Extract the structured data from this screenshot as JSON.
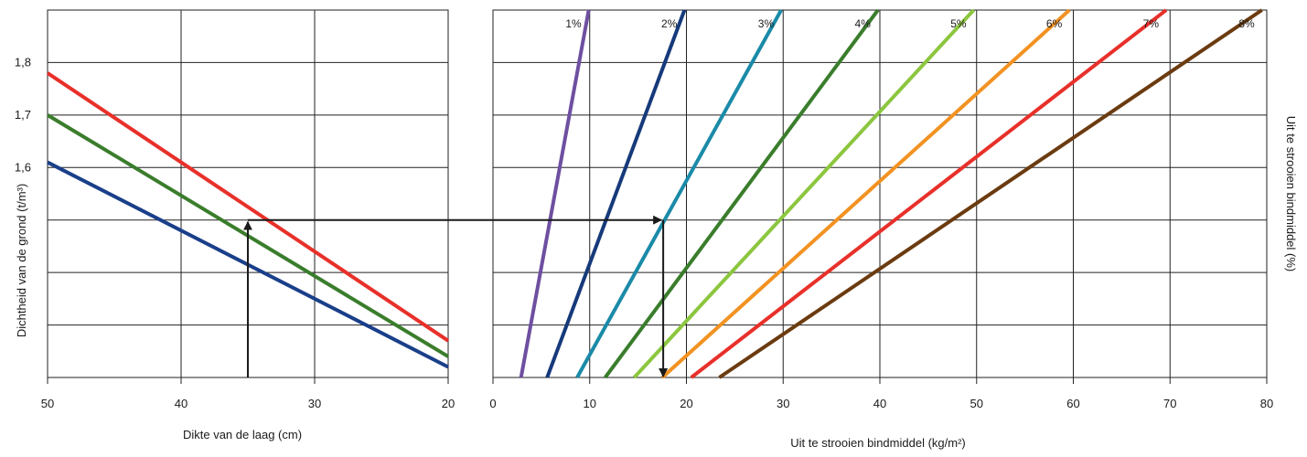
{
  "chart_data": [
    {
      "type": "line",
      "title": "",
      "xlabel": "Dikte van de laag (cm)",
      "ylabel": "Dichtheid van de grond (t/m³)",
      "x_reversed": true,
      "xlim": [
        20,
        50
      ],
      "ylim": [
        1.2,
        1.9
      ],
      "xticks": [
        "50",
        "40",
        "30",
        "20"
      ],
      "yticks": [
        "1,8",
        "1,7",
        "1,6"
      ],
      "grid": true,
      "series": [
        {
          "color": "#e8302a",
          "points": [
            [
              50,
              1.78
            ],
            [
              20,
              1.27
            ]
          ]
        },
        {
          "color": "#3a7d2c",
          "points": [
            [
              50,
              1.7
            ],
            [
              20,
              1.24
            ]
          ]
        },
        {
          "color": "#1a3f8a",
          "points": [
            [
              50,
              1.61
            ],
            [
              20,
              1.22
            ]
          ]
        }
      ],
      "annotation": {
        "from": [
          35,
          1.2
        ],
        "to": [
          35,
          1.5
        ],
        "color": "#1a1a1a"
      }
    },
    {
      "type": "line",
      "title": "",
      "xlabel": "Uit te strooien bindmiddel (kg/m²)",
      "ylabel": "Uit te strooien bindmiddel (%)",
      "xlim": [
        0,
        80
      ],
      "xticks": [
        "0",
        "10",
        "20",
        "30",
        "40",
        "50",
        "60",
        "70",
        "80"
      ],
      "grid": true,
      "series": [
        {
          "name": "1%",
          "color": "#6e4fa0",
          "from": 2.9,
          "to": 9.9
        },
        {
          "name": "2%",
          "color": "#163a7a",
          "from": 5.6,
          "to": 19.8
        },
        {
          "name": "3%",
          "color": "#1a8aa8",
          "from": 8.7,
          "to": 29.8
        },
        {
          "name": "4%",
          "color": "#3a7d2c",
          "from": 11.6,
          "to": 39.8
        },
        {
          "name": "5%",
          "color": "#8cc63f",
          "from": 14.6,
          "to": 49.7
        },
        {
          "name": "6%",
          "color": "#f29222",
          "from": 17.5,
          "to": 59.6
        },
        {
          "name": "7%",
          "color": "#e8302a",
          "from": 20.5,
          "to": 69.6
        },
        {
          "name": "8%",
          "color": "#6b3b10",
          "from": 23.4,
          "to": 79.5
        }
      ],
      "annotation": {
        "horizontal_from_x": 35,
        "corner_x": 17.6,
        "density": 1.5,
        "color": "#1a1a1a"
      }
    }
  ]
}
